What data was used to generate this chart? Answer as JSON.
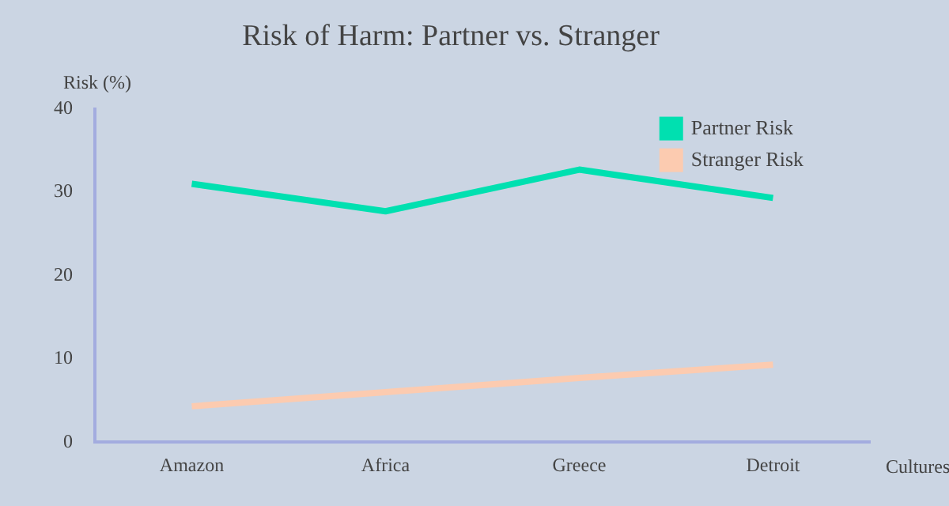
{
  "chart_data": {
    "type": "line",
    "title": "Risk of Harm: Partner vs. Stranger",
    "xlabel": "Cultures",
    "ylabel": "Risk (%)",
    "categories": [
      "Amazon",
      "Africa",
      "Greece",
      "Detroit"
    ],
    "series": [
      {
        "name": "Partner Risk",
        "color": "#00e0b0",
        "values": [
          31,
          27.7,
          32.7,
          29.3
        ]
      },
      {
        "name": "Stranger Risk",
        "color": "#fccbb0",
        "values": [
          4.3,
          6,
          7.7,
          9.3
        ]
      }
    ],
    "ylim": [
      0,
      40
    ],
    "yticks": [
      0,
      10,
      20,
      30,
      40
    ],
    "grid": false,
    "legend": "top right",
    "marker": "none"
  }
}
